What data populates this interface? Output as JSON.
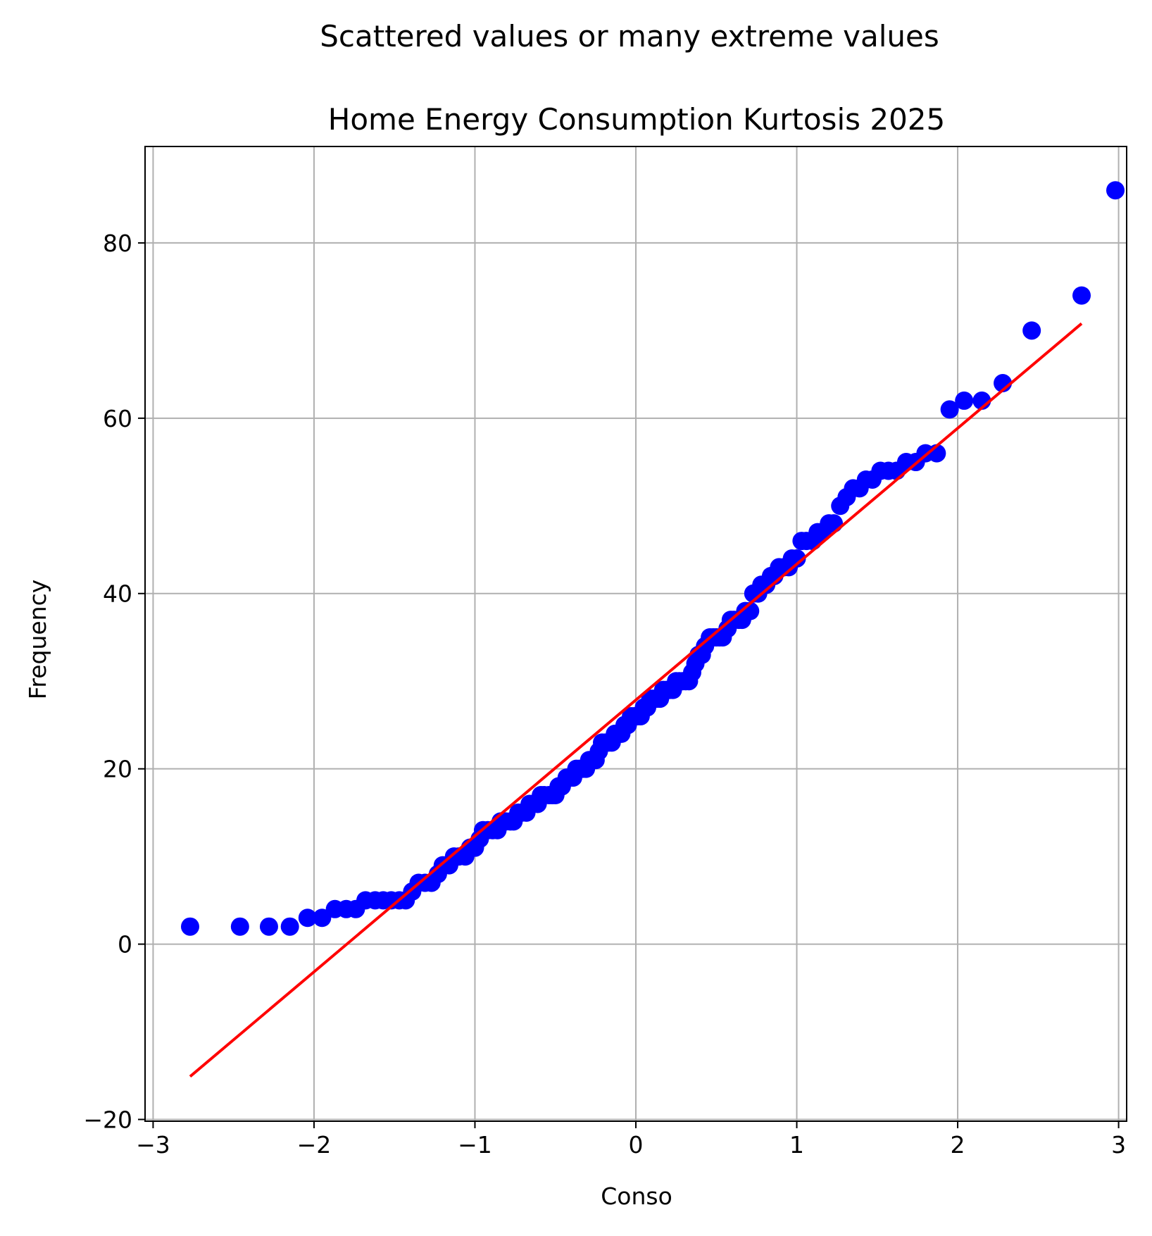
{
  "chart_data": {
    "type": "scatter",
    "suptitle": "Scattered values or many extreme values",
    "title": "Home Energy Consumption Kurtosis 2025",
    "xlabel": "Conso",
    "ylabel": "Frequency",
    "xlim": [
      -3.05,
      3.05
    ],
    "ylim": [
      -20.2,
      91
    ],
    "grid": true,
    "x_ticks": [
      -3,
      -2,
      -1,
      0,
      1,
      2,
      3
    ],
    "x_tick_labels": [
      "−3",
      "−2",
      "−1",
      "0",
      "1",
      "2",
      "3"
    ],
    "y_ticks": [
      -20,
      0,
      20,
      40,
      60,
      80
    ],
    "y_tick_labels": [
      "−20",
      "0",
      "20",
      "40",
      "60",
      "80"
    ],
    "colors": {
      "points": "#0000ff",
      "fit_line": "#ff0000"
    },
    "series": [
      {
        "type": "scatter",
        "points": [
          [
            -2.77,
            2
          ],
          [
            -2.46,
            2
          ],
          [
            -2.28,
            2
          ],
          [
            -2.15,
            2
          ],
          [
            -2.04,
            3
          ],
          [
            -1.95,
            3
          ],
          [
            -1.87,
            4
          ],
          [
            -1.8,
            4
          ],
          [
            -1.74,
            4
          ],
          [
            -1.68,
            5
          ],
          [
            -1.62,
            5
          ],
          [
            -1.57,
            5
          ],
          [
            -1.52,
            5
          ],
          [
            -1.47,
            5
          ],
          [
            -1.43,
            5
          ],
          [
            -1.39,
            6
          ],
          [
            -1.35,
            7
          ],
          [
            -1.31,
            7
          ],
          [
            -1.27,
            7
          ],
          [
            -1.23,
            8
          ],
          [
            -1.2,
            9
          ],
          [
            -1.16,
            9
          ],
          [
            -1.13,
            10
          ],
          [
            -1.1,
            10
          ],
          [
            -1.06,
            10
          ],
          [
            -1.03,
            11
          ],
          [
            -1.0,
            11
          ],
          [
            -0.97,
            12
          ],
          [
            -0.95,
            13
          ],
          [
            -0.92,
            13
          ],
          [
            -0.89,
            13
          ],
          [
            -0.86,
            13
          ],
          [
            -0.84,
            14
          ],
          [
            -0.81,
            14
          ],
          [
            -0.78,
            14
          ],
          [
            -0.76,
            14
          ],
          [
            -0.73,
            15
          ],
          [
            -0.71,
            15
          ],
          [
            -0.68,
            15
          ],
          [
            -0.66,
            16
          ],
          [
            -0.64,
            16
          ],
          [
            -0.61,
            16
          ],
          [
            -0.59,
            17
          ],
          [
            -0.57,
            17
          ],
          [
            -0.54,
            17
          ],
          [
            -0.52,
            17
          ],
          [
            -0.5,
            17
          ],
          [
            -0.48,
            18
          ],
          [
            -0.46,
            18
          ],
          [
            -0.43,
            19
          ],
          [
            -0.41,
            19
          ],
          [
            -0.39,
            19
          ],
          [
            -0.37,
            20
          ],
          [
            -0.35,
            20
          ],
          [
            -0.33,
            20
          ],
          [
            -0.31,
            20
          ],
          [
            -0.29,
            21
          ],
          [
            -0.27,
            21
          ],
          [
            -0.25,
            21
          ],
          [
            -0.23,
            22
          ],
          [
            -0.21,
            23
          ],
          [
            -0.19,
            23
          ],
          [
            -0.17,
            23
          ],
          [
            -0.15,
            23
          ],
          [
            -0.13,
            24
          ],
          [
            -0.11,
            24
          ],
          [
            -0.09,
            24
          ],
          [
            -0.07,
            25
          ],
          [
            -0.05,
            25
          ],
          [
            -0.03,
            26
          ],
          [
            -0.01,
            26
          ],
          [
            0.01,
            26
          ],
          [
            0.03,
            26
          ],
          [
            0.05,
            27
          ],
          [
            0.07,
            27
          ],
          [
            0.09,
            28
          ],
          [
            0.11,
            28
          ],
          [
            0.13,
            28
          ],
          [
            0.15,
            28
          ],
          [
            0.17,
            29
          ],
          [
            0.19,
            29
          ],
          [
            0.21,
            29
          ],
          [
            0.23,
            29
          ],
          [
            0.25,
            30
          ],
          [
            0.27,
            30
          ],
          [
            0.29,
            30
          ],
          [
            0.31,
            30
          ],
          [
            0.33,
            30
          ],
          [
            0.35,
            31
          ],
          [
            0.37,
            32
          ],
          [
            0.39,
            33
          ],
          [
            0.41,
            33
          ],
          [
            0.43,
            34
          ],
          [
            0.46,
            35
          ],
          [
            0.48,
            35
          ],
          [
            0.5,
            35
          ],
          [
            0.52,
            35
          ],
          [
            0.54,
            35
          ],
          [
            0.57,
            36
          ],
          [
            0.59,
            37
          ],
          [
            0.61,
            37
          ],
          [
            0.64,
            37
          ],
          [
            0.66,
            37
          ],
          [
            0.68,
            38
          ],
          [
            0.71,
            38
          ],
          [
            0.73,
            40
          ],
          [
            0.76,
            40
          ],
          [
            0.78,
            41
          ],
          [
            0.81,
            41
          ],
          [
            0.84,
            42
          ],
          [
            0.86,
            42
          ],
          [
            0.89,
            43
          ],
          [
            0.92,
            43
          ],
          [
            0.95,
            43
          ],
          [
            0.97,
            44
          ],
          [
            1.0,
            44
          ],
          [
            1.03,
            46
          ],
          [
            1.06,
            46
          ],
          [
            1.1,
            46
          ],
          [
            1.13,
            47
          ],
          [
            1.16,
            47
          ],
          [
            1.2,
            48
          ],
          [
            1.23,
            48
          ],
          [
            1.27,
            50
          ],
          [
            1.31,
            51
          ],
          [
            1.35,
            52
          ],
          [
            1.39,
            52
          ],
          [
            1.43,
            53
          ],
          [
            1.47,
            53
          ],
          [
            1.52,
            54
          ],
          [
            1.57,
            54
          ],
          [
            1.62,
            54
          ],
          [
            1.68,
            55
          ],
          [
            1.74,
            55
          ],
          [
            1.8,
            56
          ],
          [
            1.87,
            56
          ],
          [
            1.95,
            61
          ],
          [
            2.04,
            62
          ],
          [
            2.15,
            62
          ],
          [
            2.28,
            64
          ],
          [
            2.46,
            70
          ],
          [
            2.77,
            74
          ],
          [
            2.98,
            86
          ]
        ]
      },
      {
        "type": "line",
        "points": [
          [
            -2.77,
            -15.1
          ],
          [
            2.77,
            70.8
          ]
        ]
      }
    ]
  }
}
